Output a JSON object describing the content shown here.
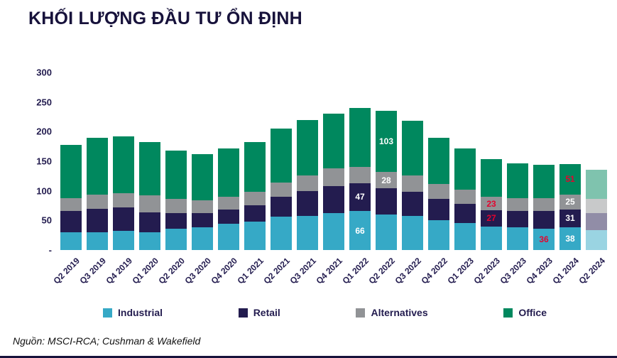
{
  "title": "KHỐI LƯỢNG ĐẦU TƯ ỔN ĐỊNH",
  "source": "Nguồn: MSCI-RCA; Cushman & Wakefield",
  "colors": {
    "industrial": "#36a9c6",
    "retail": "#231c4f",
    "alternatives": "#919396",
    "office": "#00885e",
    "label_white": "#ffffff",
    "label_red": "#e4032e",
    "axis_text": "#231c4f",
    "title_text": "#17123b"
  },
  "chart_data": {
    "type": "bar",
    "stacked": true,
    "title": "KHỐI LƯỢNG ĐẦU TƯ ỔN ĐỊNH",
    "xlabel": "",
    "ylabel": "",
    "ylim": [
      0,
      300
    ],
    "grid": false,
    "legend_position": "bottom",
    "y_ticks": [
      "300",
      "250",
      "200",
      "150",
      "100",
      "50",
      "-"
    ],
    "categories": [
      "Q2 2019",
      "Q3 2019",
      "Q4 2019",
      "Q1 2020",
      "Q2 2020",
      "Q3 2020",
      "Q4 2020",
      "Q1 2021",
      "Q2 2021",
      "Q3 2021",
      "Q4 2021",
      "Q1 2022",
      "Q2 2022",
      "Q3 2022",
      "Q4 2022",
      "Q1 2023",
      "Q2 2023",
      "Q3 2023",
      "Q4 2023",
      "Q1 2024",
      "Q2 2024"
    ],
    "faded_categories": [
      "Q2 2024"
    ],
    "series": [
      {
        "name": "Industrial",
        "color": "#36a9c6",
        "values": [
          30,
          30,
          32,
          30,
          36,
          38,
          44,
          48,
          56,
          58,
          62,
          66,
          60,
          58,
          50,
          46,
          40,
          38,
          36,
          38,
          34
        ],
        "labels": {
          "11": "white",
          "18": "red",
          "19": "white"
        }
      },
      {
        "name": "Retail",
        "color": "#231c4f",
        "values": [
          36,
          40,
          40,
          34,
          26,
          24,
          24,
          28,
          34,
          42,
          46,
          47,
          44,
          40,
          36,
          32,
          27,
          28,
          30,
          31,
          28
        ],
        "labels": {
          "11": "white",
          "16": "red",
          "19": "white"
        }
      },
      {
        "name": "Alternatives",
        "color": "#919396",
        "values": [
          22,
          24,
          24,
          28,
          24,
          22,
          22,
          22,
          24,
          26,
          30,
          28,
          28,
          28,
          26,
          24,
          23,
          22,
          22,
          25,
          24
        ],
        "labels": {
          "12": "white",
          "16": "red",
          "19": "white"
        }
      },
      {
        "name": "Office",
        "color": "#00885e",
        "values": [
          90,
          96,
          96,
          90,
          82,
          78,
          82,
          84,
          91,
          94,
          93,
          99,
          103,
          93,
          78,
          70,
          64,
          58,
          56,
          51,
          50
        ],
        "labels": {
          "12": "white",
          "19": "red"
        }
      }
    ]
  }
}
